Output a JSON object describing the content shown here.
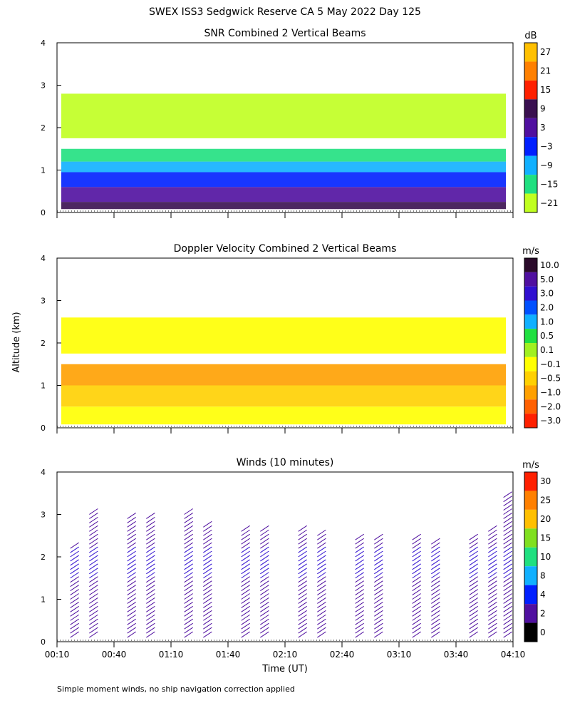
{
  "figure": {
    "title": "SWEX ISS3 Sedgwick Reserve CA   5 May 2022 Day 125",
    "ylabel": "Altitude (km)",
    "xlabel": "Time (UT)",
    "footnote": "Simple moment winds, no ship navigation correction applied"
  },
  "chart_data": [
    {
      "type": "heatmap",
      "title": "SNR Combined 2 Vertical Beams",
      "ylim": [
        0,
        4
      ],
      "yticks": [
        "0",
        "1",
        "2",
        "3",
        "4"
      ],
      "xlim_minutes_utc": [
        10,
        250
      ],
      "colorbar": {
        "unit": "dB",
        "labels": [
          "27",
          "21",
          "15",
          "9",
          "3",
          "−3",
          "−9",
          "−15",
          "−21"
        ],
        "colors": [
          "#ffc000",
          "#ff8000",
          "#ff2000",
          "#3a1050",
          "#5010a0",
          "#0020ff",
          "#10b0ff",
          "#20e080",
          "#c0ff20"
        ]
      },
      "layers": [
        {
          "name": "surface",
          "z0": 0.08,
          "z1": 0.25,
          "color": "#3a1050"
        },
        {
          "name": "lower",
          "z0": 0.25,
          "z1": 0.6,
          "color": "#5010a0"
        },
        {
          "name": "mid",
          "z0": 0.6,
          "z1": 0.95,
          "color": "#0020ff"
        },
        {
          "name": "upper",
          "z0": 0.95,
          "z1": 1.2,
          "color": "#10b0ff"
        },
        {
          "name": "top",
          "z0": 1.2,
          "z1": 1.5,
          "color": "#20e080"
        },
        {
          "name": "elevated",
          "z0": 1.75,
          "z1": 2.8,
          "color": "#c0ff20"
        }
      ]
    },
    {
      "type": "heatmap",
      "title": "Doppler Velocity Combined 2 Vertical Beams",
      "ylim": [
        0,
        4
      ],
      "yticks": [
        "0",
        "1",
        "2",
        "3",
        "4"
      ],
      "colorbar": {
        "unit": "m/s",
        "labels": [
          "10.0",
          "5.0",
          "3.0",
          "2.0",
          "1.0",
          "0.5",
          "0.1",
          "−0.1",
          "−0.5",
          "−1.0",
          "−2.0",
          "−3.0"
        ],
        "colors": [
          "#2a0a2a",
          "#5010a0",
          "#3010d0",
          "#0050ff",
          "#10b0ff",
          "#20e040",
          "#a0f020",
          "#ffff00",
          "#ffd000",
          "#ffa000",
          "#ff6000",
          "#ff2000"
        ]
      },
      "layers": [
        {
          "name": "surface",
          "z0": 0.08,
          "z1": 0.5,
          "color": "#ffff00"
        },
        {
          "name": "lower",
          "z0": 0.5,
          "z1": 1.0,
          "color": "#ffd000"
        },
        {
          "name": "mid",
          "z0": 1.0,
          "z1": 1.5,
          "color": "#ffa000"
        },
        {
          "name": "elevated",
          "z0": 1.75,
          "z1": 2.6,
          "color": "#ffff00"
        }
      ]
    },
    {
      "type": "scatter",
      "title": "Winds (10 minutes)",
      "ylim": [
        0,
        4
      ],
      "yticks": [
        "0",
        "1",
        "2",
        "3",
        "4"
      ],
      "xticks": [
        "00:10",
        "00:40",
        "01:10",
        "01:40",
        "02:10",
        "02:40",
        "03:10",
        "03:40",
        "04:10"
      ],
      "colorbar": {
        "unit": "m/s",
        "labels": [
          "30",
          "25",
          "20",
          "15",
          "10",
          "8",
          "4",
          "2",
          "0"
        ],
        "colors": [
          "#ff2000",
          "#ff8000",
          "#ffc000",
          "#80e020",
          "#20e080",
          "#10b0ff",
          "#0020ff",
          "#5010a0",
          "#000000"
        ]
      },
      "profiles": [
        {
          "t": 17,
          "top": 2.2
        },
        {
          "t": 27,
          "top": 3.0
        },
        {
          "t": 47,
          "top": 2.9
        },
        {
          "t": 57,
          "top": 2.9
        },
        {
          "t": 77,
          "top": 3.0
        },
        {
          "t": 87,
          "top": 2.7
        },
        {
          "t": 107,
          "top": 2.6
        },
        {
          "t": 117,
          "top": 2.6
        },
        {
          "t": 137,
          "top": 2.6
        },
        {
          "t": 147,
          "top": 2.5
        },
        {
          "t": 167,
          "top": 2.4
        },
        {
          "t": 177,
          "top": 2.4
        },
        {
          "t": 197,
          "top": 2.4
        },
        {
          "t": 207,
          "top": 2.3
        },
        {
          "t": 227,
          "top": 2.4
        },
        {
          "t": 237,
          "top": 2.6
        },
        {
          "t": 245,
          "top": 3.4
        }
      ]
    }
  ]
}
